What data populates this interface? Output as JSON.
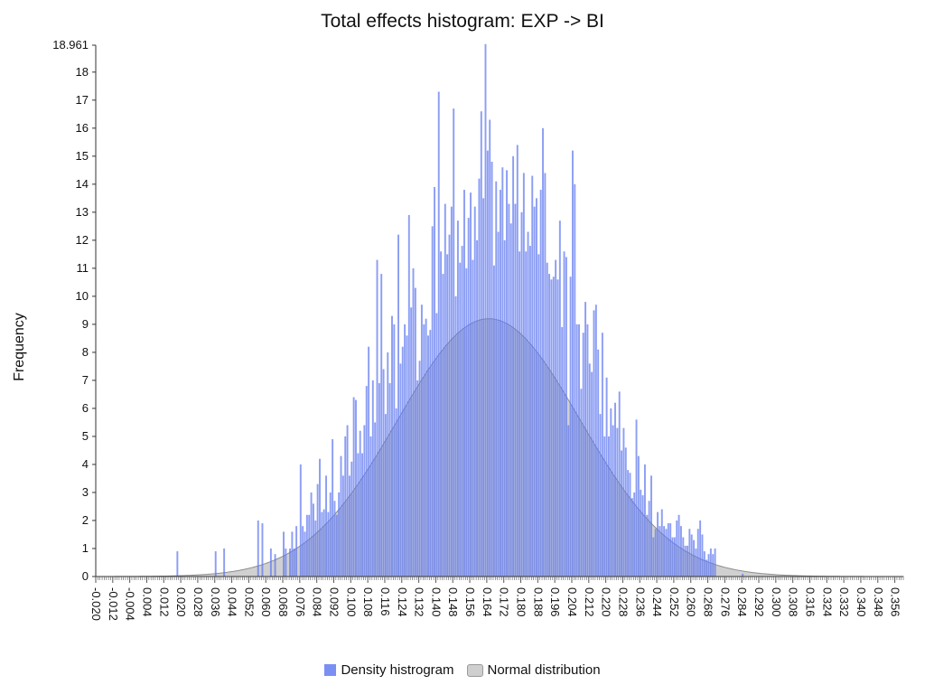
{
  "chart_data": {
    "type": "bar",
    "title": "Total effects histogram: EXP -> BI",
    "xlabel": "",
    "ylabel": "Frequency",
    "xlim": [
      -0.02,
      0.36
    ],
    "ylim": [
      0,
      18.961
    ],
    "y_ticks": [
      0,
      1,
      2,
      3,
      4,
      5,
      6,
      7,
      8,
      9,
      10,
      11,
      12,
      13,
      14,
      15,
      16,
      17,
      18,
      18.961
    ],
    "x_ticks": [
      "-0.020",
      "-0.012",
      "-0.004",
      "0.004",
      "0.012",
      "0.020",
      "0.028",
      "0.036",
      "0.044",
      "0.052",
      "0.060",
      "0.068",
      "0.076",
      "0.084",
      "0.092",
      "0.100",
      "0.108",
      "0.116",
      "0.124",
      "0.132",
      "0.140",
      "0.148",
      "0.156",
      "0.164",
      "0.172",
      "0.180",
      "0.188",
      "0.196",
      "0.204",
      "0.212",
      "0.220",
      "0.228",
      "0.236",
      "0.244",
      "0.252",
      "0.260",
      "0.268",
      "0.276",
      "0.284",
      "0.292",
      "0.300",
      "0.308",
      "0.316",
      "0.324",
      "0.332",
      "0.340",
      "0.348",
      "0.356"
    ],
    "grid": false,
    "legend_position": "bottom",
    "bin_width": 0.001,
    "series": [
      {
        "name": "Density histrogram",
        "color": "#7b8ff3",
        "bins": [
          [
            0.018,
            0.9
          ],
          [
            0.036,
            0.9
          ],
          [
            0.04,
            1.0
          ],
          [
            0.056,
            2.0
          ],
          [
            0.058,
            1.9
          ],
          [
            0.062,
            1.0
          ],
          [
            0.064,
            0.8
          ],
          [
            0.068,
            1.6
          ],
          [
            0.069,
            1.0
          ],
          [
            0.071,
            1.0
          ],
          [
            0.072,
            1.6
          ],
          [
            0.073,
            1.0
          ],
          [
            0.074,
            1.8
          ],
          [
            0.076,
            4.0
          ],
          [
            0.077,
            1.8
          ],
          [
            0.078,
            1.6
          ],
          [
            0.079,
            2.2
          ],
          [
            0.08,
            2.2
          ],
          [
            0.081,
            3.0
          ],
          [
            0.082,
            2.6
          ],
          [
            0.083,
            2.0
          ],
          [
            0.084,
            3.3
          ],
          [
            0.085,
            4.2
          ],
          [
            0.086,
            2.3
          ],
          [
            0.087,
            2.4
          ],
          [
            0.088,
            3.6
          ],
          [
            0.089,
            2.3
          ],
          [
            0.09,
            3.0
          ],
          [
            0.091,
            4.9
          ],
          [
            0.092,
            2.7
          ],
          [
            0.093,
            2.2
          ],
          [
            0.094,
            3.0
          ],
          [
            0.095,
            4.3
          ],
          [
            0.096,
            3.6
          ],
          [
            0.097,
            5.0
          ],
          [
            0.098,
            5.4
          ],
          [
            0.099,
            3.6
          ],
          [
            0.1,
            4.1
          ],
          [
            0.101,
            6.4
          ],
          [
            0.102,
            6.3
          ],
          [
            0.103,
            4.4
          ],
          [
            0.104,
            5.2
          ],
          [
            0.105,
            4.4
          ],
          [
            0.106,
            5.4
          ],
          [
            0.107,
            6.8
          ],
          [
            0.108,
            8.2
          ],
          [
            0.109,
            5.0
          ],
          [
            0.11,
            7.0
          ],
          [
            0.111,
            5.5
          ],
          [
            0.112,
            11.3
          ],
          [
            0.113,
            6.9
          ],
          [
            0.114,
            10.8
          ],
          [
            0.115,
            7.4
          ],
          [
            0.116,
            5.8
          ],
          [
            0.117,
            8.0
          ],
          [
            0.118,
            6.9
          ],
          [
            0.119,
            9.3
          ],
          [
            0.12,
            9.0
          ],
          [
            0.121,
            6.0
          ],
          [
            0.122,
            12.2
          ],
          [
            0.123,
            7.6
          ],
          [
            0.124,
            8.2
          ],
          [
            0.125,
            9.0
          ],
          [
            0.126,
            8.6
          ],
          [
            0.127,
            12.9
          ],
          [
            0.128,
            9.6
          ],
          [
            0.129,
            11.0
          ],
          [
            0.13,
            10.3
          ],
          [
            0.131,
            7.0
          ],
          [
            0.132,
            7.7
          ],
          [
            0.133,
            9.7
          ],
          [
            0.134,
            9.0
          ],
          [
            0.135,
            9.2
          ],
          [
            0.136,
            8.6
          ],
          [
            0.137,
            8.8
          ],
          [
            0.138,
            12.5
          ],
          [
            0.139,
            13.9
          ],
          [
            0.14,
            9.4
          ],
          [
            0.141,
            17.3
          ],
          [
            0.142,
            11.6
          ],
          [
            0.143,
            10.8
          ],
          [
            0.144,
            13.3
          ],
          [
            0.145,
            11.5
          ],
          [
            0.146,
            12.2
          ],
          [
            0.147,
            13.2
          ],
          [
            0.148,
            16.7
          ],
          [
            0.149,
            10.0
          ],
          [
            0.15,
            12.7
          ],
          [
            0.151,
            11.2
          ],
          [
            0.152,
            11.8
          ],
          [
            0.153,
            13.8
          ],
          [
            0.154,
            11.0
          ],
          [
            0.155,
            12.8
          ],
          [
            0.156,
            13.7
          ],
          [
            0.157,
            11.3
          ],
          [
            0.158,
            13.2
          ],
          [
            0.159,
            12.0
          ],
          [
            0.16,
            14.2
          ],
          [
            0.161,
            16.6
          ],
          [
            0.162,
            13.5
          ],
          [
            0.163,
            19.0
          ],
          [
            0.164,
            15.2
          ],
          [
            0.165,
            16.3
          ],
          [
            0.166,
            14.8
          ],
          [
            0.167,
            11.1
          ],
          [
            0.168,
            14.1
          ],
          [
            0.169,
            12.3
          ],
          [
            0.17,
            13.8
          ],
          [
            0.171,
            14.6
          ],
          [
            0.172,
            12.0
          ],
          [
            0.173,
            14.5
          ],
          [
            0.174,
            13.3
          ],
          [
            0.175,
            12.6
          ],
          [
            0.176,
            15.0
          ],
          [
            0.177,
            13.3
          ],
          [
            0.178,
            15.4
          ],
          [
            0.179,
            11.6
          ],
          [
            0.18,
            13.0
          ],
          [
            0.181,
            14.4
          ],
          [
            0.182,
            11.6
          ],
          [
            0.183,
            12.3
          ],
          [
            0.184,
            11.8
          ],
          [
            0.185,
            14.3
          ],
          [
            0.186,
            13.2
          ],
          [
            0.187,
            13.5
          ],
          [
            0.188,
            11.5
          ],
          [
            0.189,
            13.8
          ],
          [
            0.19,
            16.0
          ],
          [
            0.191,
            14.4
          ],
          [
            0.192,
            11.2
          ],
          [
            0.193,
            10.8
          ],
          [
            0.194,
            10.6
          ],
          [
            0.195,
            10.7
          ],
          [
            0.196,
            11.3
          ],
          [
            0.197,
            10.6
          ],
          [
            0.198,
            12.7
          ],
          [
            0.199,
            8.9
          ],
          [
            0.2,
            11.6
          ],
          [
            0.201,
            11.4
          ],
          [
            0.202,
            5.4
          ],
          [
            0.203,
            10.7
          ],
          [
            0.204,
            15.2
          ],
          [
            0.205,
            14.0
          ],
          [
            0.206,
            9.0
          ],
          [
            0.207,
            9.0
          ],
          [
            0.208,
            6.7
          ],
          [
            0.209,
            8.7
          ],
          [
            0.21,
            9.8
          ],
          [
            0.211,
            9.0
          ],
          [
            0.212,
            7.6
          ],
          [
            0.213,
            7.3
          ],
          [
            0.214,
            9.5
          ],
          [
            0.215,
            9.7
          ],
          [
            0.216,
            8.1
          ],
          [
            0.217,
            5.8
          ],
          [
            0.218,
            8.7
          ],
          [
            0.219,
            5.0
          ],
          [
            0.22,
            7.1
          ],
          [
            0.221,
            5.0
          ],
          [
            0.222,
            6.0
          ],
          [
            0.223,
            5.4
          ],
          [
            0.224,
            6.2
          ],
          [
            0.225,
            5.3
          ],
          [
            0.226,
            6.6
          ],
          [
            0.227,
            4.5
          ],
          [
            0.228,
            5.3
          ],
          [
            0.229,
            4.6
          ],
          [
            0.23,
            3.8
          ],
          [
            0.231,
            3.7
          ],
          [
            0.232,
            2.8
          ],
          [
            0.233,
            3.0
          ],
          [
            0.234,
            5.6
          ],
          [
            0.235,
            4.3
          ],
          [
            0.236,
            3.1
          ],
          [
            0.237,
            2.9
          ],
          [
            0.238,
            4.0
          ],
          [
            0.239,
            2.2
          ],
          [
            0.24,
            2.7
          ],
          [
            0.241,
            3.6
          ],
          [
            0.242,
            1.4
          ],
          [
            0.243,
            1.7
          ],
          [
            0.244,
            2.3
          ],
          [
            0.245,
            1.8
          ],
          [
            0.246,
            2.4
          ],
          [
            0.247,
            1.8
          ],
          [
            0.248,
            1.7
          ],
          [
            0.249,
            1.9
          ],
          [
            0.25,
            1.9
          ],
          [
            0.251,
            1.4
          ],
          [
            0.252,
            1.4
          ],
          [
            0.253,
            2.0
          ],
          [
            0.254,
            2.2
          ],
          [
            0.255,
            1.8
          ],
          [
            0.256,
            1.4
          ],
          [
            0.257,
            1.1
          ],
          [
            0.258,
            1.1
          ],
          [
            0.259,
            1.7
          ],
          [
            0.26,
            1.5
          ],
          [
            0.261,
            1.3
          ],
          [
            0.262,
            1.0
          ],
          [
            0.263,
            1.7
          ],
          [
            0.264,
            2.0
          ],
          [
            0.265,
            1.5
          ],
          [
            0.266,
            0.9
          ],
          [
            0.267,
            0.6
          ],
          [
            0.268,
            0.8
          ],
          [
            0.269,
            1.0
          ],
          [
            0.27,
            0.8
          ],
          [
            0.271,
            1.0
          ],
          [
            0.284,
            0.1
          ]
        ]
      },
      {
        "name": "Normal distribution",
        "color": "#b0b0b0",
        "type": "area",
        "mean": 0.165,
        "sd": 0.043,
        "peak": 9.2
      }
    ]
  }
}
